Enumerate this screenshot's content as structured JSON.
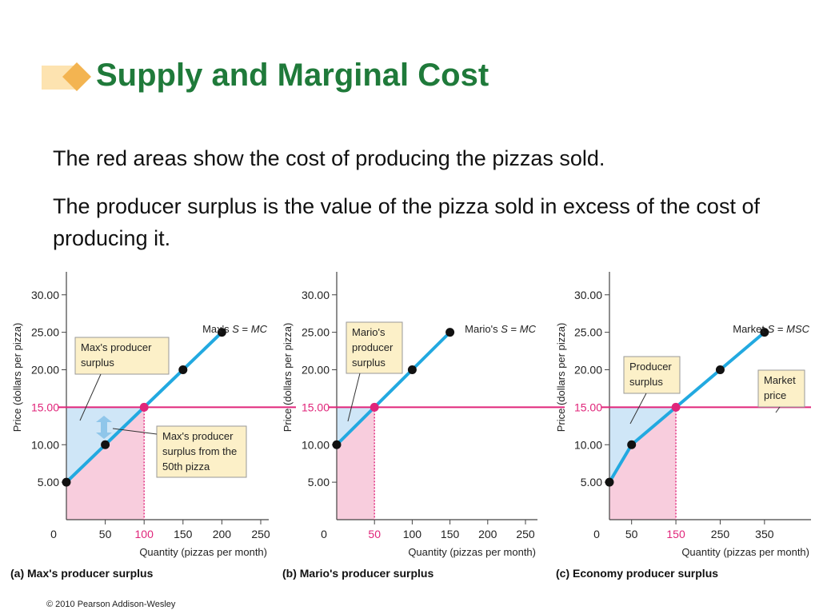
{
  "slide": {
    "title": "Supply and Marginal Cost",
    "paragraphs": [
      "The red areas show the cost of producing the pizzas sold.",
      "The producer surplus is the value of the pizza sold in excess of the cost of producing it."
    ],
    "copyright": "© 2010 Pearson Addison-Wesley"
  },
  "colors": {
    "title": "#1f7a3a",
    "supply_line": "#22a9e0",
    "price_line": "#e0257a",
    "surplus_fill": "#cfe6f7",
    "cost_fill": "#f8cddd",
    "callout_fill": "#fcf0c8"
  },
  "chart_data": [
    {
      "type": "line",
      "caption": "(a) Max's producer surplus",
      "ylabel": "Price (dollars per pizza)",
      "xlabel": "Quantity (pizzas per month)",
      "xlim": [
        0,
        250
      ],
      "ylim": [
        0,
        32
      ],
      "xticks": [
        0,
        50,
        100,
        150,
        200,
        250
      ],
      "xtick_labels": [
        "0",
        "50",
        "100",
        "150",
        "200",
        "250"
      ],
      "highlight_xtick": "100",
      "yticks": [
        5,
        10,
        15,
        20,
        25,
        30
      ],
      "ytick_labels": [
        "5.00",
        "10.00",
        "15.00",
        "20.00",
        "25.00",
        "30.00"
      ],
      "highlight_ytick": "15.00",
      "price": 15,
      "quantity_sold": 100,
      "series": [
        {
          "name": "Max's S = MC",
          "x": [
            0,
            50,
            100,
            150,
            200
          ],
          "y": [
            5,
            10,
            15,
            20,
            25
          ]
        }
      ],
      "annotations": [
        {
          "text": [
            "Max's producer",
            "surplus"
          ]
        },
        {
          "text": [
            "Max's producer",
            "surplus from the",
            "50th pizza"
          ]
        }
      ]
    },
    {
      "type": "line",
      "caption": "(b) Mario's producer surplus",
      "ylabel": "Price (dollars per pizza)",
      "xlabel": "Quantity (pizzas per month)",
      "xlim": [
        0,
        250
      ],
      "ylim": [
        0,
        32
      ],
      "xticks": [
        0,
        50,
        100,
        150,
        200,
        250
      ],
      "xtick_labels": [
        "0",
        "50",
        "100",
        "150",
        "200",
        "250"
      ],
      "highlight_xtick": "50",
      "yticks": [
        5,
        10,
        15,
        20,
        25,
        30
      ],
      "ytick_labels": [
        "5.00",
        "10.00",
        "15.00",
        "20.00",
        "25.00",
        "30.00"
      ],
      "highlight_ytick": "15.00",
      "price": 15,
      "quantity_sold": 50,
      "series": [
        {
          "name": "Mario's S = MC",
          "x": [
            0,
            50,
            100,
            150
          ],
          "y": [
            10,
            15,
            20,
            25
          ]
        }
      ],
      "annotations": [
        {
          "text": [
            "Mario's",
            "producer",
            "surplus"
          ]
        }
      ]
    },
    {
      "type": "line",
      "caption": "(c) Economy producer surplus",
      "ylabel": "Price (dollars per pizza)",
      "xlabel": "Quantity (pizzas per month)",
      "xlim": [
        0,
        390
      ],
      "ylim": [
        0,
        32
      ],
      "xticks": [
        0,
        50,
        150,
        250,
        350
      ],
      "xtick_labels": [
        "0",
        "50",
        "150",
        "250",
        "350"
      ],
      "highlight_xtick": "150",
      "yticks": [
        5,
        10,
        15,
        20,
        25,
        30
      ],
      "ytick_labels": [
        "5.00",
        "10.00",
        "15.00",
        "20.00",
        "25.00",
        "30.00"
      ],
      "highlight_ytick": "15.00",
      "price": 15,
      "quantity_sold": 150,
      "series": [
        {
          "name": "Market S = MSC",
          "x": [
            0,
            50,
            150,
            250,
            350
          ],
          "y": [
            5,
            10,
            15,
            20,
            25
          ]
        }
      ],
      "annotations": [
        {
          "text": [
            "Producer",
            "surplus"
          ]
        },
        {
          "text": [
            "Market",
            "price"
          ]
        }
      ]
    }
  ]
}
